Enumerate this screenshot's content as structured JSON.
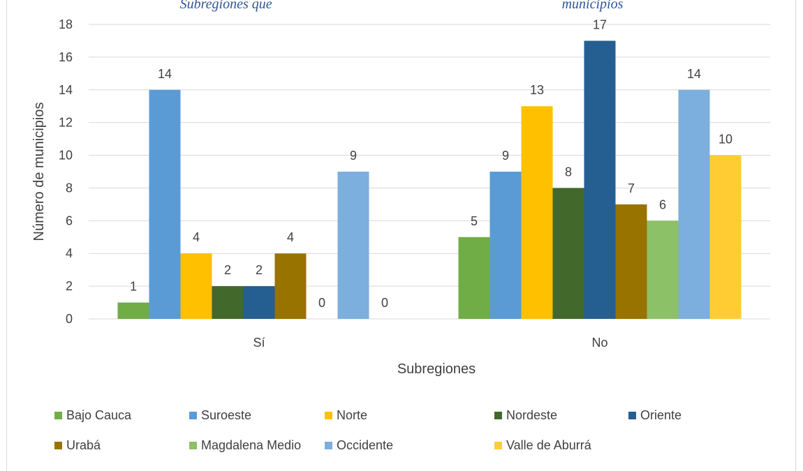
{
  "chart_data": {
    "type": "bar",
    "title_fragment": "Subregiones que                                                                                   municipios",
    "categories": [
      "Sí",
      "No"
    ],
    "xlabel": "Subregiones",
    "ylabel": "Número de municipios",
    "ylim": [
      0,
      18
    ],
    "yticks": [
      "0",
      "2",
      "4",
      "6",
      "8",
      "10",
      "12",
      "14",
      "16",
      "18"
    ],
    "grid": true,
    "legend_position": "bottom",
    "series": [
      {
        "name": "Bajo Cauca",
        "color": "#70ad47",
        "values": [
          1,
          5
        ]
      },
      {
        "name": "Suroeste",
        "color": "#5b9bd5",
        "values": [
          14,
          9
        ]
      },
      {
        "name": "Norte",
        "color": "#ffc000",
        "values": [
          4,
          13
        ]
      },
      {
        "name": "Nordeste",
        "color": "#43682b",
        "values": [
          2,
          8
        ]
      },
      {
        "name": "Oriente",
        "color": "#255e91",
        "values": [
          2,
          17
        ]
      },
      {
        "name": "Urabá",
        "color": "#997300",
        "values": [
          4,
          7
        ]
      },
      {
        "name": "Magdalena Medio",
        "color": "#8cc168",
        "values": [
          0,
          6
        ]
      },
      {
        "name": "Occidente",
        "color": "#7cafdd",
        "values": [
          9,
          14
        ]
      },
      {
        "name": "Valle de Aburrá",
        "color": "#ffcd33",
        "values": [
          0,
          10
        ]
      }
    ]
  }
}
